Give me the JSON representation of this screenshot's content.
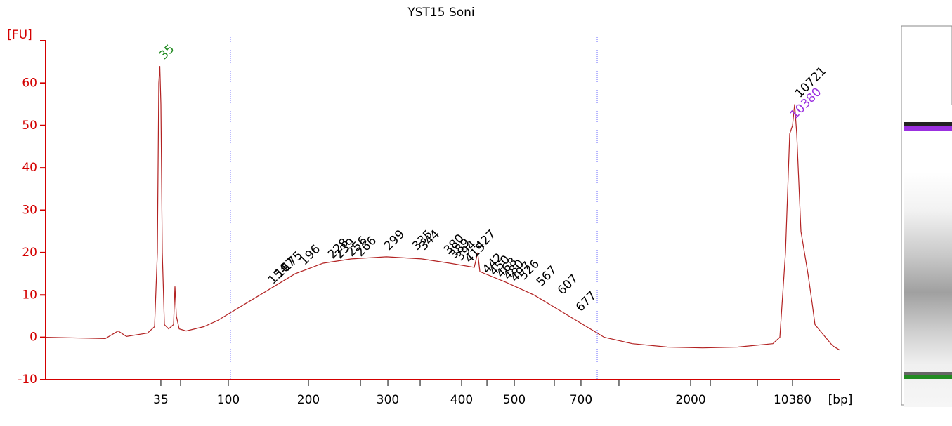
{
  "chart_data": {
    "type": "line",
    "title": "YST15 Soni",
    "y_label": "[FU]",
    "x_label": "[bp]",
    "color": "#b22222",
    "axis_color": "#d40000",
    "xlim": [
      0,
      100
    ],
    "ylim": [
      -10,
      70
    ],
    "yticks": [
      -10,
      0,
      10,
      20,
      30,
      40,
      50,
      60
    ],
    "xticks": [
      {
        "value": 14.51,
        "label": "35"
      },
      {
        "value": 23.01,
        "label": "100"
      },
      {
        "value": 33.1,
        "label": "200"
      },
      {
        "value": 43.1,
        "label": "300"
      },
      {
        "value": 52.39,
        "label": "400"
      },
      {
        "value": 59.03,
        "label": "500"
      },
      {
        "value": 67.43,
        "label": "700"
      },
      {
        "value": 81.24,
        "label": "2000"
      },
      {
        "value": 94.07,
        "label": "10380"
      }
    ],
    "minor_xticks": [
      16.99,
      39.65,
      47.17,
      55.58,
      64.07,
      72.21,
      83.72,
      89.65
    ],
    "region_lines": [
      23.27,
      69.47
    ],
    "x": [
      0,
      7.52,
      9.12,
      10.18,
      12.83,
      13.72,
      14.07,
      14.25,
      14.38,
      14.51,
      14.69,
      14.96,
      15.49,
      16.11,
      16.28,
      16.46,
      16.81,
      17.7,
      19.91,
      21.68,
      23.45,
      26.11,
      28.76,
      31.42,
      34.96,
      38.5,
      42.92,
      47.35,
      50.88,
      53.98,
      54.42,
      54.69,
      57.96,
      61.5,
      65.04,
      67.7,
      70.35,
      73.89,
      78.32,
      82.74,
      87.17,
      91.59,
      92.48,
      93.19,
      93.72,
      94.07,
      94.34,
      94.6,
      95.13,
      96.02,
      96.55,
      96.9,
      98.23,
      99.12,
      100
    ],
    "values": [
      0,
      -0.3,
      1.5,
      0.2,
      1.0,
      2.5,
      20,
      60,
      64,
      55,
      20,
      3,
      2,
      3,
      12,
      5,
      2,
      1.5,
      2.5,
      4,
      6,
      9,
      12,
      15,
      17.5,
      18.5,
      19,
      18.5,
      17.5,
      16.5,
      20,
      15.5,
      13,
      10,
      6,
      3,
      0,
      -1.5,
      -2.3,
      -2.5,
      -2.3,
      -1.5,
      0,
      20,
      48,
      50,
      55,
      48,
      25,
      15,
      8,
      3,
      0,
      -2,
      -3
    ],
    "peaks": [
      {
        "bp": 35,
        "x": 14.6,
        "y": 66,
        "color": "#228b22"
      },
      {
        "bp": 154,
        "x": 28.32,
        "y": 13,
        "color": "#000000"
      },
      {
        "bp": 167,
        "x": 29.2,
        "y": 14.5,
        "color": "#000000"
      },
      {
        "bp": 175,
        "x": 30.09,
        "y": 16,
        "color": "#000000"
      },
      {
        "bp": 196,
        "x": 32.3,
        "y": 17.5,
        "color": "#000000"
      },
      {
        "bp": 228,
        "x": 35.84,
        "y": 19,
        "color": "#000000"
      },
      {
        "bp": 239,
        "x": 36.73,
        "y": 19,
        "color": "#000000"
      },
      {
        "bp": 256,
        "x": 38.23,
        "y": 19.5,
        "color": "#000000"
      },
      {
        "bp": 266,
        "x": 39.38,
        "y": 19.5,
        "color": "#000000"
      },
      {
        "bp": 299,
        "x": 42.92,
        "y": 21,
        "color": "#000000"
      },
      {
        "bp": 335,
        "x": 46.46,
        "y": 21,
        "color": "#000000"
      },
      {
        "bp": 344,
        "x": 47.35,
        "y": 21,
        "color": "#000000"
      },
      {
        "bp": 380,
        "x": 50.44,
        "y": 20,
        "color": "#000000"
      },
      {
        "bp": 389,
        "x": 51.15,
        "y": 19,
        "color": "#000000"
      },
      {
        "bp": 394,
        "x": 51.95,
        "y": 18.5,
        "color": "#000000"
      },
      {
        "bp": 415,
        "x": 53.1,
        "y": 18,
        "color": "#000000"
      },
      {
        "bp": 427,
        "x": 54.42,
        "y": 21,
        "color": "#000000"
      },
      {
        "bp": 442,
        "x": 55.31,
        "y": 15.5,
        "color": "#000000"
      },
      {
        "bp": 450,
        "x": 56.19,
        "y": 15,
        "color": "#000000"
      },
      {
        "bp": 468,
        "x": 57.08,
        "y": 14.5,
        "color": "#000000"
      },
      {
        "bp": 480,
        "x": 57.96,
        "y": 14,
        "color": "#000000"
      },
      {
        "bp": 497,
        "x": 58.85,
        "y": 13.5,
        "color": "#000000"
      },
      {
        "bp": 526,
        "x": 59.91,
        "y": 14,
        "color": "#000000"
      },
      {
        "bp": 567,
        "x": 62.12,
        "y": 12.5,
        "color": "#000000"
      },
      {
        "bp": 607,
        "x": 64.78,
        "y": 10.5,
        "color": "#000000"
      },
      {
        "bp": 677,
        "x": 67.08,
        "y": 6.5,
        "color": "#000000"
      },
      {
        "bp": 10380,
        "x": 94.07,
        "y": 52,
        "color": "#9b30e0"
      },
      {
        "bp": 10721,
        "x": 94.69,
        "y": 57,
        "color": "#000000"
      }
    ]
  }
}
